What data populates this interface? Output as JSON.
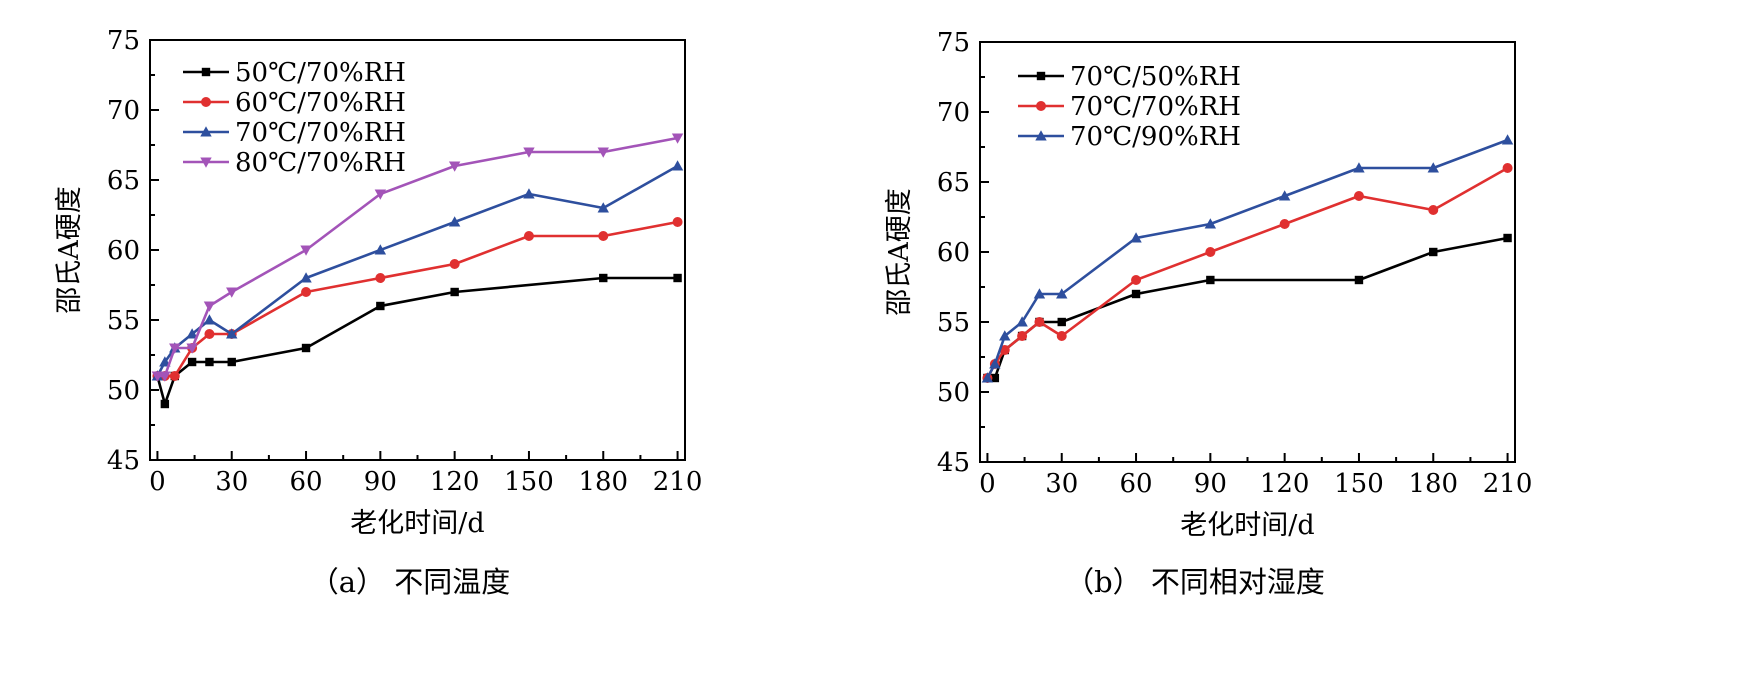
{
  "chart_data": [
    {
      "type": "line",
      "xlabel": "老化时间/d",
      "ylabel": "邵氏A硬度",
      "xlim": [
        -3,
        213
      ],
      "ylim": [
        45,
        75
      ],
      "xticks": [
        0,
        30,
        60,
        90,
        120,
        150,
        180,
        210
      ],
      "yticks": [
        45,
        50,
        55,
        60,
        65,
        70,
        75
      ],
      "grid": false,
      "legend_position": "top-left",
      "caption": "（a）  不同温度",
      "series": [
        {
          "name": "50℃/70%RH",
          "color": "#000000",
          "marker": "square",
          "x": [
            0,
            3,
            7,
            14,
            21,
            30,
            60,
            90,
            120,
            180,
            210
          ],
          "y": [
            51,
            49,
            51,
            52,
            52,
            52,
            53,
            56,
            57,
            58,
            58
          ]
        },
        {
          "name": "60℃/70%RH",
          "color": "#e03030",
          "marker": "circle",
          "x": [
            0,
            3,
            7,
            14,
            21,
            30,
            60,
            90,
            120,
            150,
            180,
            210
          ],
          "y": [
            51,
            51,
            51,
            53,
            54,
            54,
            57,
            58,
            59,
            61,
            61,
            62
          ]
        },
        {
          "name": "70℃/70%RH",
          "color": "#2e4f9e",
          "marker": "triangle-up",
          "x": [
            0,
            3,
            7,
            14,
            21,
            30,
            60,
            90,
            120,
            150,
            180,
            210
          ],
          "y": [
            51,
            52,
            53,
            54,
            55,
            54,
            58,
            60,
            62,
            64,
            63,
            66
          ]
        },
        {
          "name": "80℃/70%RH",
          "color": "#a354b8",
          "marker": "triangle-down",
          "x": [
            0,
            3,
            7,
            14,
            21,
            30,
            60,
            90,
            120,
            150,
            180,
            210
          ],
          "y": [
            51,
            51,
            53,
            53,
            56,
            57,
            60,
            64,
            66,
            67,
            67,
            68
          ]
        }
      ]
    },
    {
      "type": "line",
      "xlabel": "老化时间/d",
      "ylabel": "邵氏A硬度",
      "xlim": [
        -3,
        213
      ],
      "ylim": [
        45,
        75
      ],
      "xticks": [
        0,
        30,
        60,
        90,
        120,
        150,
        180,
        210
      ],
      "yticks": [
        45,
        50,
        55,
        60,
        65,
        70,
        75
      ],
      "grid": false,
      "legend_position": "top-left",
      "caption": "（b）  不同相对湿度",
      "series": [
        {
          "name": "70℃/50%RH",
          "color": "#000000",
          "marker": "square",
          "x": [
            0,
            3,
            7,
            14,
            21,
            30,
            60,
            90,
            150,
            180,
            210
          ],
          "y": [
            51,
            51,
            53,
            54,
            55,
            55,
            57,
            58,
            58,
            60,
            61
          ]
        },
        {
          "name": "70℃/70%RH",
          "color": "#e03030",
          "marker": "circle",
          "x": [
            0,
            3,
            7,
            14,
            21,
            30,
            60,
            90,
            120,
            150,
            180,
            210
          ],
          "y": [
            51,
            52,
            53,
            54,
            55,
            54,
            58,
            60,
            62,
            64,
            63,
            66
          ]
        },
        {
          "name": "70℃/90%RH",
          "color": "#2e4f9e",
          "marker": "triangle-up",
          "x": [
            0,
            3,
            7,
            14,
            21,
            30,
            60,
            90,
            120,
            150,
            180,
            210
          ],
          "y": [
            51,
            52,
            54,
            55,
            57,
            57,
            61,
            62,
            64,
            66,
            66,
            68
          ]
        }
      ]
    }
  ]
}
